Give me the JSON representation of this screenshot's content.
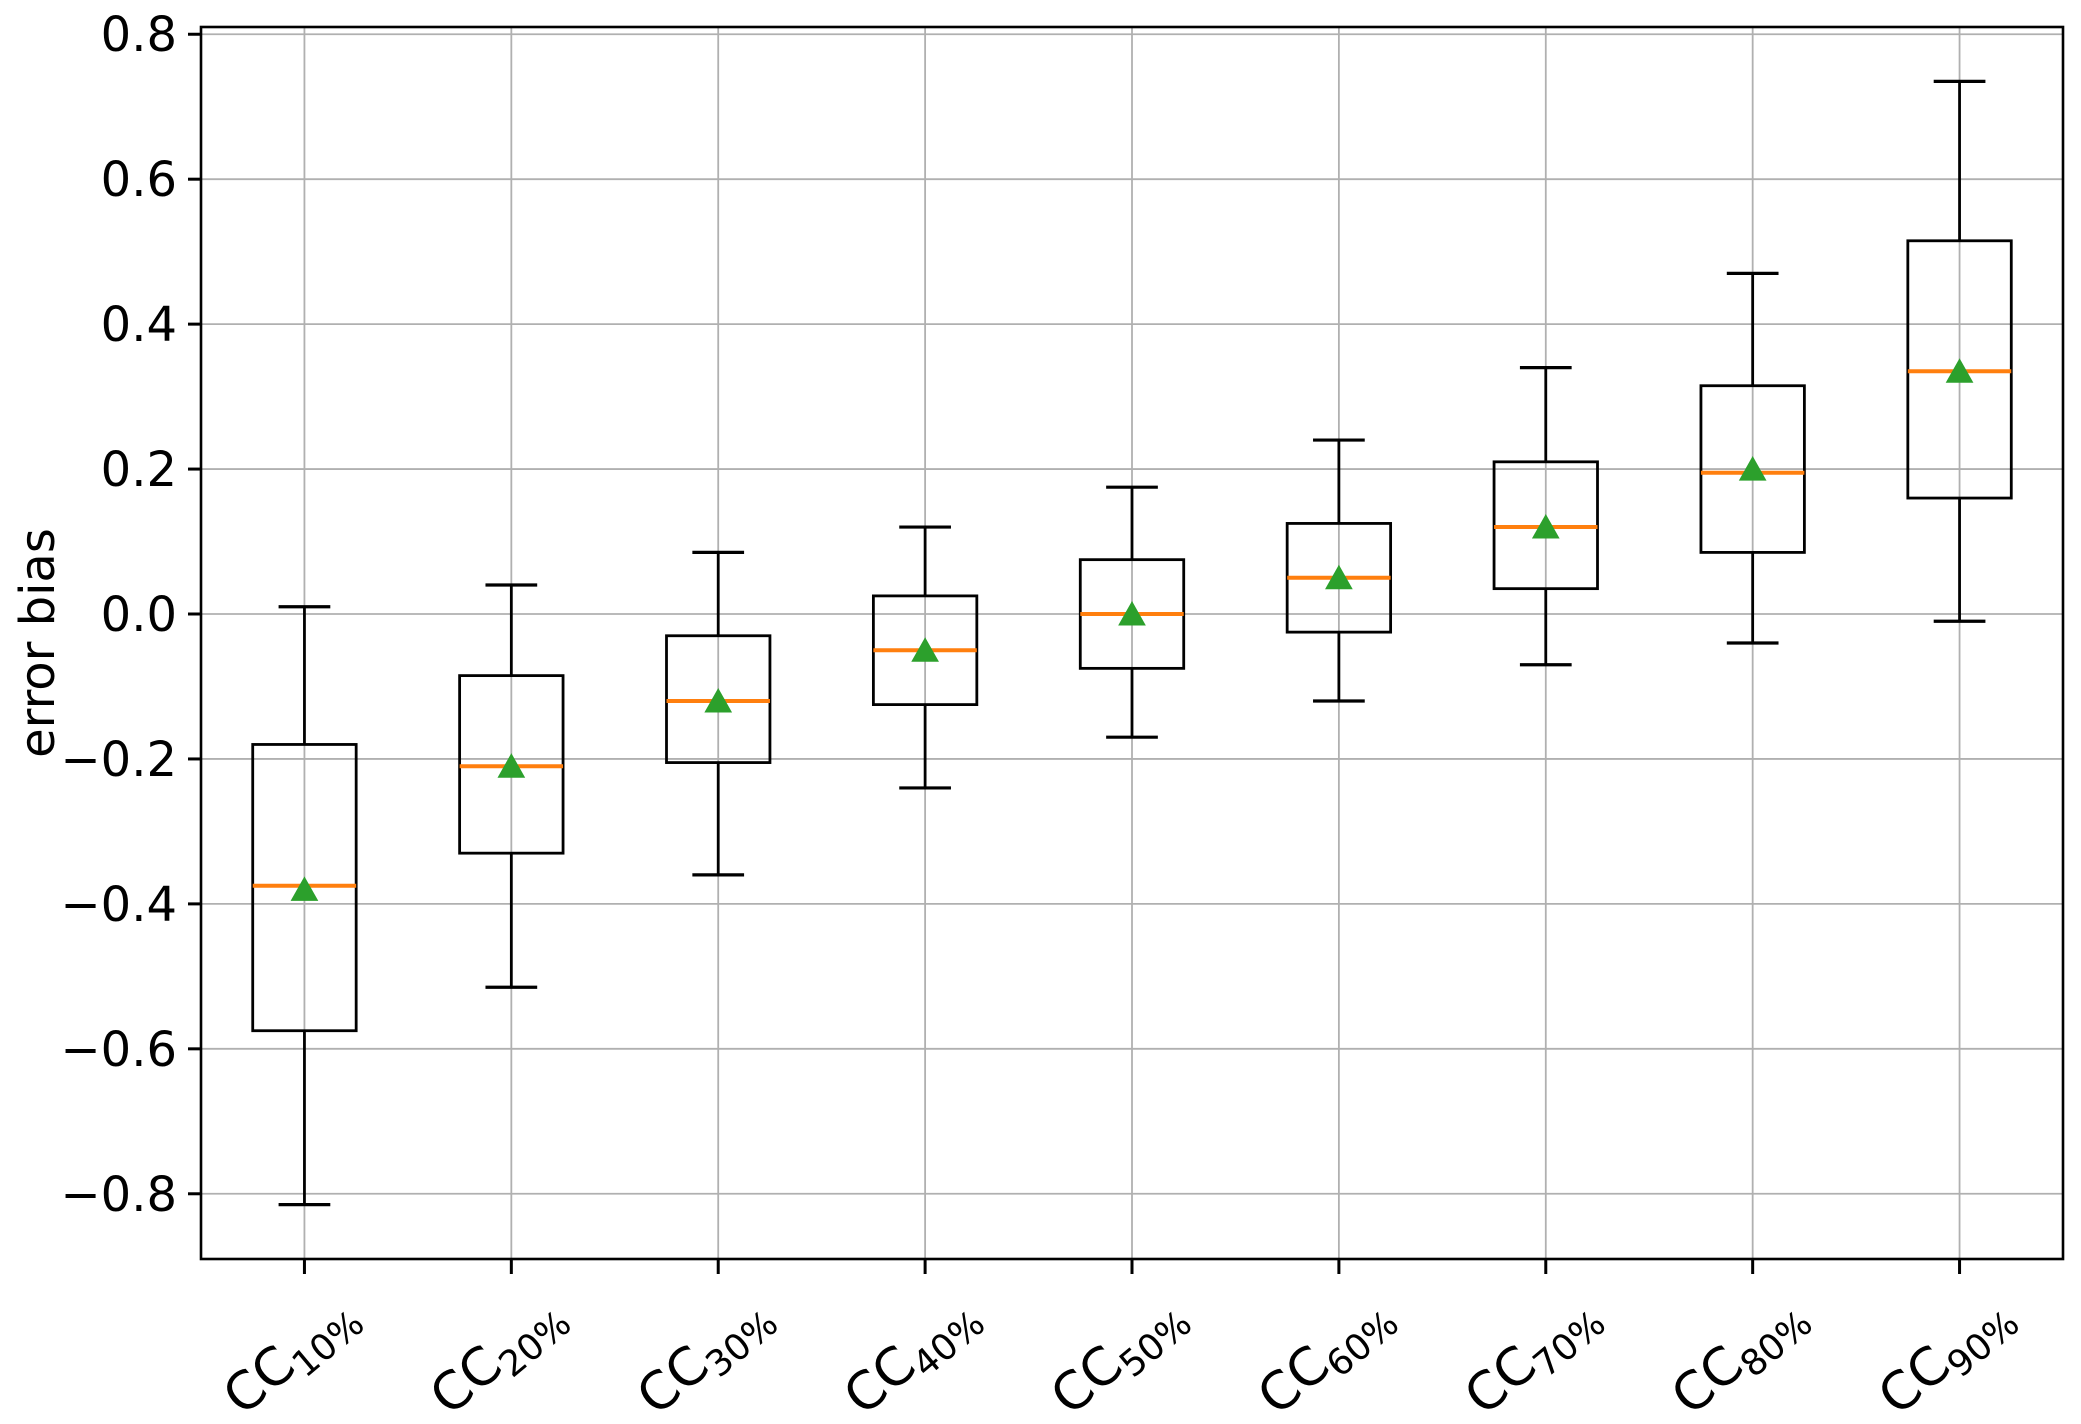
{
  "figure": {
    "background": "#ffffff"
  },
  "chart_data": {
    "type": "boxplot",
    "title": "",
    "xlabel": "",
    "ylabel": "error bias",
    "ylim": [
      -0.89,
      0.81
    ],
    "yticks": [
      0.8,
      0.6,
      0.4,
      0.2,
      0.0,
      -0.2,
      -0.4,
      -0.6,
      -0.8
    ],
    "ytick_labels": [
      "0.8",
      "0.6",
      "0.4",
      "0.2",
      "0.0",
      "−0.2",
      "−0.4",
      "−0.6",
      "−0.8"
    ],
    "grid": true,
    "legend": false,
    "xtick_rotation_deg": 40,
    "categories": [
      "CC10%",
      "CC20%",
      "CC30%",
      "CC40%",
      "CC50%",
      "CC60%",
      "CC70%",
      "CC80%",
      "CC90%"
    ],
    "category_parts": [
      {
        "main": "CC",
        "sub": "10%"
      },
      {
        "main": "CC",
        "sub": "20%"
      },
      {
        "main": "CC",
        "sub": "30%"
      },
      {
        "main": "CC",
        "sub": "40%"
      },
      {
        "main": "CC",
        "sub": "50%"
      },
      {
        "main": "CC",
        "sub": "60%"
      },
      {
        "main": "CC",
        "sub": "70%"
      },
      {
        "main": "CC",
        "sub": "80%"
      },
      {
        "main": "CC",
        "sub": "90%"
      }
    ],
    "series": [
      {
        "label": "CC10%",
        "whisker_low": -0.815,
        "q1": -0.575,
        "median": -0.375,
        "mean": -0.38,
        "q3": -0.18,
        "whisker_high": 0.01
      },
      {
        "label": "CC20%",
        "whisker_low": -0.515,
        "q1": -0.33,
        "median": -0.21,
        "mean": -0.21,
        "q3": -0.085,
        "whisker_high": 0.04
      },
      {
        "label": "CC30%",
        "whisker_low": -0.36,
        "q1": -0.205,
        "median": -0.12,
        "mean": -0.12,
        "q3": -0.03,
        "whisker_high": 0.085
      },
      {
        "label": "CC40%",
        "whisker_low": -0.24,
        "q1": -0.125,
        "median": -0.05,
        "mean": -0.05,
        "q3": 0.025,
        "whisker_high": 0.12
      },
      {
        "label": "CC50%",
        "whisker_low": -0.17,
        "q1": -0.075,
        "median": 0.0,
        "mean": 0.0,
        "q3": 0.075,
        "whisker_high": 0.175
      },
      {
        "label": "CC60%",
        "whisker_low": -0.12,
        "q1": -0.025,
        "median": 0.05,
        "mean": 0.05,
        "q3": 0.125,
        "whisker_high": 0.24
      },
      {
        "label": "CC70%",
        "whisker_low": -0.07,
        "q1": 0.035,
        "median": 0.12,
        "mean": 0.12,
        "q3": 0.21,
        "whisker_high": 0.34
      },
      {
        "label": "CC80%",
        "whisker_low": -0.04,
        "q1": 0.085,
        "median": 0.195,
        "mean": 0.2,
        "q3": 0.315,
        "whisker_high": 0.47
      },
      {
        "label": "CC90%",
        "whisker_low": -0.01,
        "q1": 0.16,
        "median": 0.335,
        "mean": 0.335,
        "q3": 0.515,
        "whisker_high": 0.735
      }
    ],
    "style": {
      "box_color": "#000000",
      "median_color": "#ff7f0e",
      "mean_marker": "triangle-up",
      "mean_color": "#2ca02c",
      "grid_color": "#b0b0b0",
      "spine_color": "#000000",
      "text_color": "#000000"
    }
  }
}
